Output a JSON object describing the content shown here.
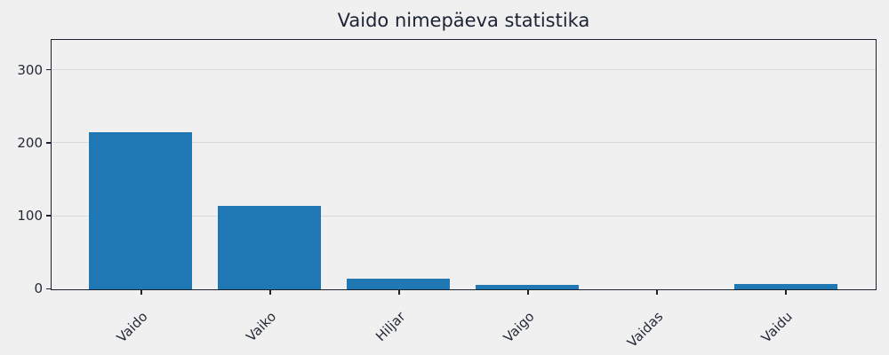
{
  "chart_data": {
    "type": "bar",
    "title": "Vaido nimepäeva statistika",
    "categories": [
      "Vaido",
      "Vaiko",
      "Hiljar",
      "Vaigo",
      "Vaidas",
      "Vaidu"
    ],
    "values": [
      215,
      114,
      15,
      6,
      0,
      7
    ],
    "xlabel": "",
    "ylabel": "",
    "ylim": [
      0,
      340
    ],
    "yticks": [
      0,
      100,
      200,
      300
    ],
    "grid": true,
    "legend": false,
    "x_tick_rotation": 45,
    "bar_color": "#1f77b4"
  },
  "colors": {
    "figure_background": "#f0f0f1",
    "axes_spine": "#1c2130",
    "gridline": "#d9dadd",
    "text": "#242a35",
    "title_text": "#1c2333",
    "bar": "#1f77b4"
  }
}
